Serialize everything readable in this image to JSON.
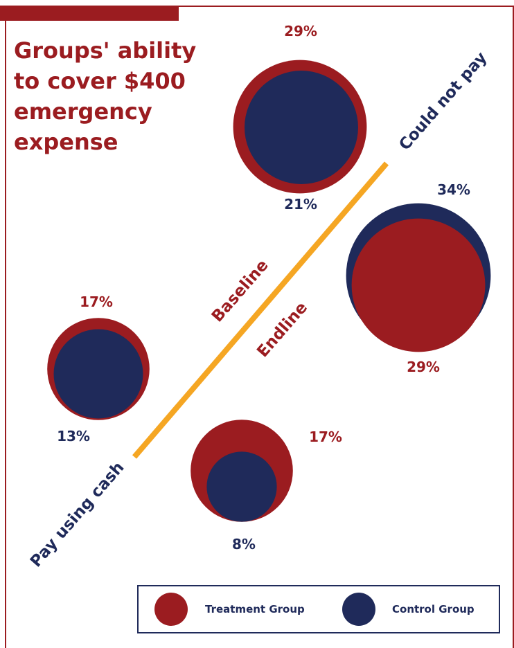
{
  "colors": {
    "treatment": "#9b1c20",
    "control": "#1f2a5a",
    "diagonal": "#f5a623",
    "frame": "#9b1c20"
  },
  "chart_data": {
    "type": "bubble",
    "title_lines": [
      "Groups' ability",
      "to cover $400",
      "emergency",
      "expense"
    ],
    "axis_ends": {
      "low": "Pay using cash",
      "high": "Could not pay"
    },
    "periods": [
      "Baseline",
      "Endline"
    ],
    "series": [
      {
        "name": "Treatment Group",
        "key": "treatment"
      },
      {
        "name": "Control Group",
        "key": "control"
      }
    ],
    "points": [
      {
        "outcome": "Could not pay",
        "period": "Baseline",
        "treatment": 29,
        "control": 21
      },
      {
        "outcome": "Could not pay",
        "period": "Endline",
        "treatment": 29,
        "control": 34
      },
      {
        "outcome": "Pay using cash",
        "period": "Baseline",
        "treatment": 17,
        "control": 13
      },
      {
        "outcome": "Pay using cash",
        "period": "Endline",
        "treatment": 17,
        "control": 8
      }
    ],
    "unit": "%"
  },
  "legend": {
    "treatment_label": "Treatment Group",
    "control_label": "Control Group"
  }
}
